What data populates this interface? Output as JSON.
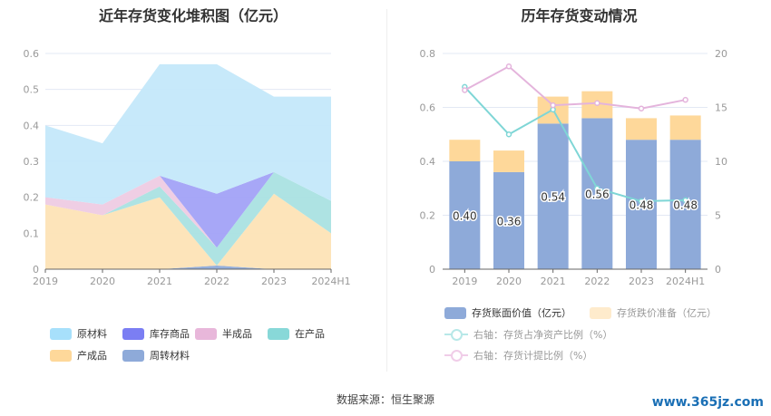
{
  "left": {
    "title": "近年存货变化堆积图（亿元）",
    "chart_data": {
      "type": "area",
      "stacked": true,
      "title": "近年存货变化堆积图（亿元）",
      "categories": [
        "2019",
        "2020",
        "2021",
        "2022",
        "2023",
        "2024H1"
      ],
      "ylim": [
        0,
        0.6
      ],
      "yticks": [
        "0",
        "0.1",
        "0.2",
        "0.3",
        "0.4",
        "0.5",
        "0.6"
      ],
      "series": [
        {
          "name": "周转材料",
          "color": "#8eaad9",
          "values": [
            0,
            0,
            0,
            0.01,
            0,
            0
          ]
        },
        {
          "name": "产成品",
          "color": "#fde3b6",
          "values": [
            0.18,
            0.15,
            0.2,
            0,
            0.21,
            0.1
          ]
        },
        {
          "name": "在产品",
          "color": "#aae2e2",
          "values": [
            0,
            0,
            0.03,
            0.05,
            0.06,
            0.09
          ]
        },
        {
          "name": "半成品",
          "color": "#eecbe3",
          "values": [
            0.02,
            0.03,
            0.03,
            0,
            0,
            0
          ]
        },
        {
          "name": "库存商品",
          "color": "#a2a2f7",
          "values": [
            0,
            0,
            0,
            0.15,
            0,
            0
          ]
        },
        {
          "name": "原材料",
          "color": "#c4e8fa",
          "values": [
            0.2,
            0.17,
            0.31,
            0.36,
            0.21,
            0.29
          ]
        }
      ]
    },
    "legend": [
      {
        "name": "原材料",
        "color": "#a7e0fb"
      },
      {
        "name": "库存商品",
        "color": "#7b7ef3"
      },
      {
        "name": "半成品",
        "color": "#e8b7da"
      },
      {
        "name": "在产品",
        "color": "#88d8d8"
      },
      {
        "name": "产成品",
        "color": "#fed89a"
      },
      {
        "name": "周转材料",
        "color": "#8eaad9"
      }
    ]
  },
  "right": {
    "title": "历年存货变动情况",
    "chart_data": {
      "type": "bar",
      "title": "历年存货变动情况",
      "categories": [
        "2019",
        "2020",
        "2021",
        "2022",
        "2023",
        "2024H1"
      ],
      "ylim": [
        0,
        0.8
      ],
      "yticks": [
        "0",
        "0.2",
        "0.4",
        "0.6",
        "0.8"
      ],
      "y2lim": [
        0,
        20
      ],
      "y2ticks": [
        "0",
        "5",
        "10",
        "15",
        "20"
      ],
      "series": [
        {
          "name": "存货账面价值（亿元）",
          "type": "bar",
          "color": "#8eaad9",
          "values": [
            0.4,
            0.36,
            0.54,
            0.56,
            0.48,
            0.48
          ],
          "labels": [
            "0.40",
            "0.36",
            "0.54",
            "0.56",
            "0.48",
            "0.48"
          ]
        },
        {
          "name": "存货跌价准备（亿元）",
          "type": "bar",
          "color": "#fed89a",
          "values": [
            0.08,
            0.08,
            0.1,
            0.1,
            0.08,
            0.09
          ]
        },
        {
          "name": "右轴：存货占净资产比例（%）",
          "type": "line",
          "axis": "right",
          "color": "#7fd6d6",
          "values": [
            16.9,
            12.5,
            14.8,
            7.5,
            6.3,
            6.4
          ]
        },
        {
          "name": "右轴：存货计提比例（%）",
          "type": "line",
          "axis": "right",
          "color": "#e4b4dc",
          "values": [
            16.6,
            18.8,
            15.2,
            15.4,
            14.9,
            15.7
          ]
        }
      ]
    }
  },
  "footer": {
    "source": "数据来源：恒生聚源",
    "watermark": "www.365jz.com"
  }
}
